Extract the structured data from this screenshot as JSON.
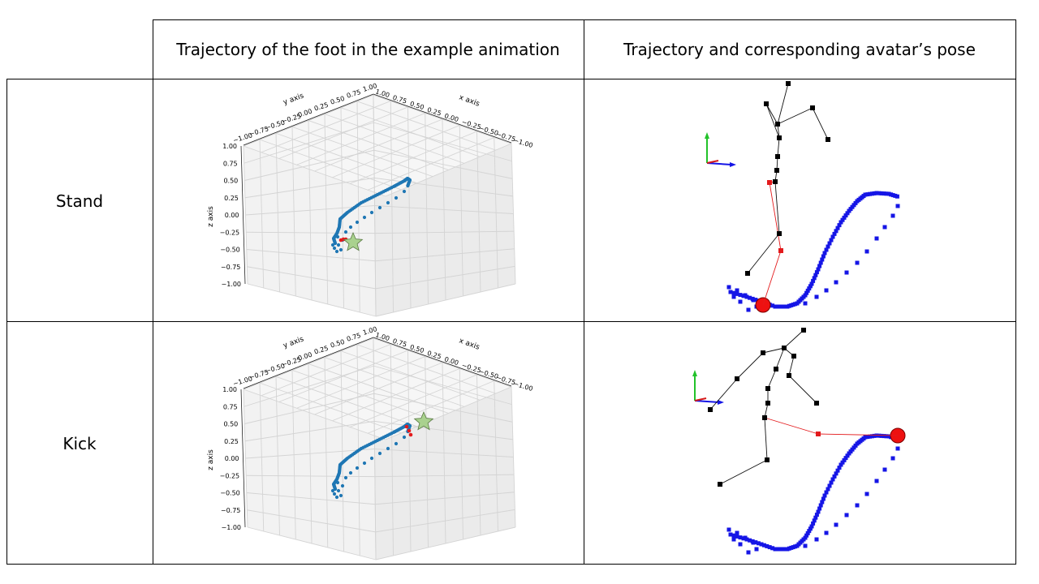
{
  "table": {
    "col1_header": "",
    "col2_header": "Trajectory of the foot in the example animation",
    "col3_header": "Trajectory and corresponding avatar’s pose",
    "rows": [
      {
        "label": "Stand"
      },
      {
        "label": "Kick"
      }
    ]
  },
  "plot3d": {
    "y_axis_label": "y axis",
    "x_axis_label": "x axis",
    "z_axis_label": "z axis",
    "ticks": [
      "−1.00",
      "−0.75",
      "−0.50",
      "−0.25",
      "0.00",
      "0.25",
      "0.50",
      "0.75",
      "1.00"
    ],
    "z_ticks": [
      "1.00",
      "0.75",
      "0.50",
      "0.25",
      "0.00",
      "−0.25",
      "−0.50",
      "−0.75",
      "−1.00"
    ]
  },
  "colors": {
    "trajectory": "#1f77b4",
    "current": "#e31a1c",
    "star": "#a9d18e",
    "pose_traj": "#1515e6",
    "skeleton": "#000000",
    "leg_active": "#e31a1c"
  }
}
